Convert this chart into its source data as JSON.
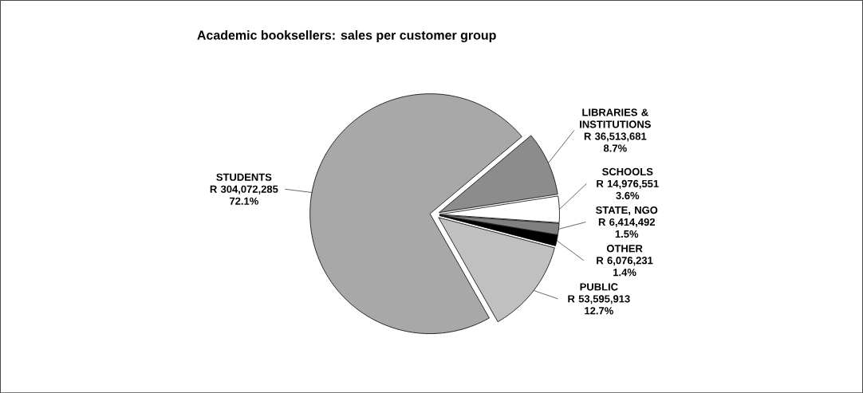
{
  "chart_data": {
    "type": "pie",
    "title": "Academic booksellers: sales per customer group",
    "categories": [
      "LIBRARIES & INSTITUTIONS",
      "SCHOOLS",
      "STATE, NGO",
      "OTHER",
      "PUBLIC",
      "STUDENTS"
    ],
    "values": [
      36513681,
      14976551,
      6414492,
      6076231,
      53595913,
      304072285
    ],
    "value_labels": [
      "R 36,513,681 8.7%",
      "R 14,976,551 3.6%",
      "R 6,414,492 1.5%",
      "R 6,076,231 1.4%",
      "R 53,595,913 12.7%",
      "R 304,072,285 72.1%"
    ],
    "colors": [
      "#8c8c8c",
      "#ffffff",
      "#808080",
      "#000000",
      "#c0c0c0",
      "#a8a8a8"
    ]
  }
}
